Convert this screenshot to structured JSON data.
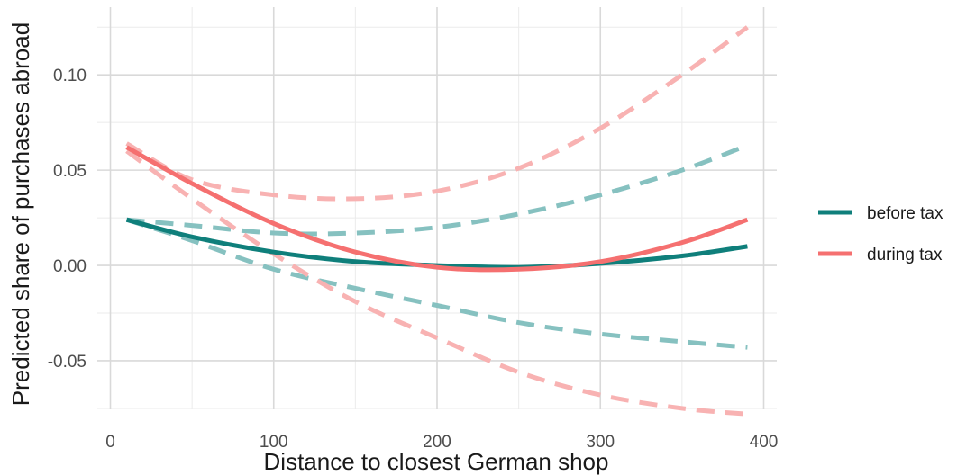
{
  "chart_data": {
    "type": "line",
    "title": "",
    "xlabel": "Distance to closest German shop",
    "ylabel": "Predicted share of purchases abroad",
    "xlim": [
      -8,
      408
    ],
    "ylim": [
      -0.0755,
      0.1355
    ],
    "x_ticks": [
      0,
      100,
      200,
      300,
      400
    ],
    "x_tick_labels": [
      "0",
      "100",
      "200",
      "300",
      "400"
    ],
    "y_ticks": [
      -0.05,
      0.0,
      0.05,
      0.1
    ],
    "y_tick_labels": [
      "-0.05",
      "0.00",
      "0.05",
      "0.10"
    ],
    "grid": true,
    "legend_position": "right",
    "series": [
      {
        "name": "before tax",
        "color": "#0f7f7b",
        "linestyle": "solid",
        "x": [
          10,
          50,
          100,
          150,
          200,
          250,
          300,
          350,
          390
        ],
        "y": [
          0.024,
          0.015,
          0.007,
          0.002,
          0.0,
          -0.001,
          0.001,
          0.005,
          0.01
        ]
      },
      {
        "name": "during tax",
        "color": "#f57070",
        "linestyle": "solid",
        "x": [
          10,
          50,
          100,
          150,
          200,
          250,
          300,
          350,
          390
        ],
        "y": [
          0.062,
          0.043,
          0.022,
          0.007,
          -0.001,
          -0.002,
          0.002,
          0.012,
          0.024
        ]
      }
    ],
    "confidence_bands": [
      {
        "series": "before tax",
        "color": "#86c1c0",
        "linestyle": "dashed",
        "x": [
          10,
          50,
          100,
          150,
          200,
          250,
          300,
          350,
          390
        ],
        "upper": [
          0.024,
          0.021,
          0.017,
          0.017,
          0.02,
          0.027,
          0.037,
          0.05,
          0.063
        ],
        "lower": [
          0.024,
          0.013,
          -0.002,
          -0.012,
          -0.021,
          -0.03,
          -0.036,
          -0.04,
          -0.043
        ]
      },
      {
        "series": "during tax",
        "color": "#f8b2b2",
        "linestyle": "dashed",
        "x": [
          10,
          50,
          100,
          150,
          200,
          250,
          300,
          350,
          390
        ],
        "upper": [
          0.064,
          0.045,
          0.037,
          0.035,
          0.039,
          0.051,
          0.072,
          0.1,
          0.125
        ],
        "lower": [
          0.06,
          0.035,
          0.006,
          -0.019,
          -0.038,
          -0.056,
          -0.068,
          -0.075,
          -0.078
        ]
      }
    ]
  }
}
